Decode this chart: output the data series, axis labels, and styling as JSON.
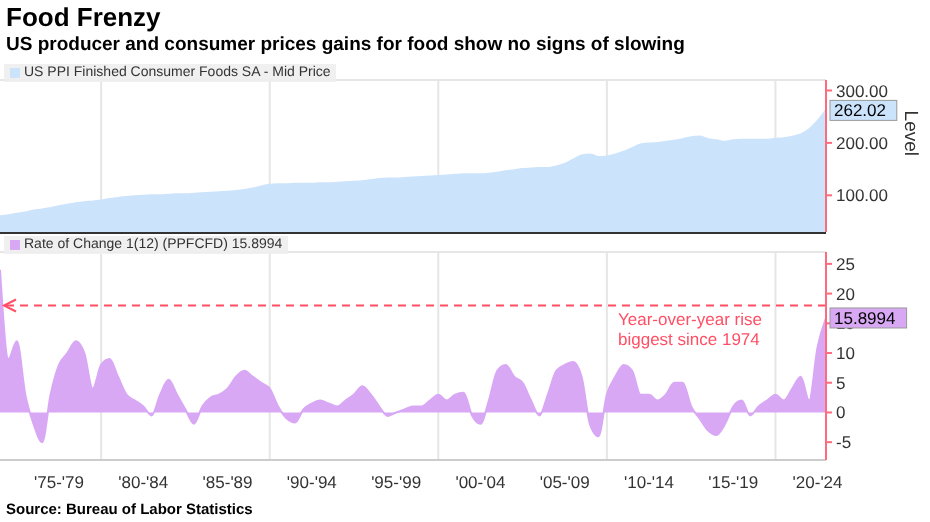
{
  "chart_data": [
    {
      "type": "area",
      "title": "Food Frenzy",
      "subtitle": "US producer and consumer prices gains for food show no signs of slowing",
      "ylabel": "Level",
      "ylim": [
        30,
        320
      ],
      "yticks": [
        {
          "value": 100,
          "label": "100.00"
        },
        {
          "value": 200,
          "label": "200.00"
        },
        {
          "value": 300,
          "label": "300.00"
        }
      ],
      "tick_labels": "y",
      "grid": true,
      "legend": "top left",
      "categories": [
        null,
        null,
        null,
        null,
        null,
        null,
        null,
        null,
        null,
        null,
        null,
        null,
        null,
        null,
        null,
        null,
        null,
        null,
        null,
        null,
        null,
        null,
        null,
        null,
        null,
        null,
        null,
        null,
        null,
        null,
        null,
        null,
        null,
        null,
        null,
        null,
        null,
        null,
        null,
        null,
        null,
        null,
        null,
        null,
        null,
        null,
        null,
        null,
        null,
        null,
        null,
        null,
        null,
        null,
        null,
        null,
        null,
        null,
        null,
        null,
        null,
        null,
        null,
        null,
        null,
        null,
        null,
        null,
        null,
        null,
        null,
        null,
        null,
        null,
        null,
        null,
        null,
        null,
        null,
        null,
        null,
        null,
        null,
        null,
        null,
        null,
        null,
        null,
        null,
        null,
        null,
        null,
        null,
        null,
        null,
        null,
        null,
        null,
        null
      ],
      "series": [
        {
          "name": "US PPI Finished Consumer Foods SA - Mid Price",
          "color": "#cce3fc",
          "values": [
            60,
            62,
            65,
            67,
            71,
            73,
            76,
            79,
            82,
            85,
            87,
            88,
            90,
            93,
            95,
            97,
            98,
            99,
            100,
            100,
            101,
            102,
            102,
            103,
            104,
            105,
            106,
            107,
            108,
            110,
            113,
            117,
            120,
            121,
            121,
            122,
            122,
            122,
            123,
            123,
            124,
            125,
            126,
            127,
            129,
            131,
            132,
            132,
            133,
            134,
            135,
            136,
            137,
            138,
            139,
            140,
            140,
            140,
            141,
            143,
            146,
            148,
            150,
            151,
            152,
            152,
            155,
            160,
            168,
            176,
            178,
            173,
            174,
            178,
            183,
            190,
            197,
            199,
            200,
            202,
            204,
            207,
            211,
            212,
            207,
            205,
            202,
            205,
            206,
            206,
            206,
            206,
            208,
            209,
            212,
            216,
            226,
            242,
            262.02
          ],
          "value_labels": [
            null,
            null,
            null,
            null,
            null,
            null,
            null,
            null,
            null,
            null,
            null,
            null,
            null,
            null,
            null,
            null,
            null,
            null,
            null,
            null,
            null,
            null,
            null,
            null,
            null,
            null,
            null,
            null,
            null,
            null,
            null,
            null,
            null,
            null,
            null,
            null,
            null,
            null,
            null,
            null,
            null,
            null,
            null,
            null,
            null,
            null,
            null,
            null,
            null,
            null,
            null,
            null,
            null,
            null,
            null,
            null,
            null,
            null,
            null,
            null,
            null,
            null,
            null,
            null,
            null,
            null,
            null,
            null,
            null,
            null,
            null,
            null,
            null,
            null,
            null,
            null,
            null,
            null,
            null,
            null,
            null,
            null,
            null,
            null,
            null,
            null,
            null,
            null,
            null,
            null,
            null,
            null,
            null,
            null,
            null,
            null,
            null,
            null,
            "262.02"
          ]
        }
      ]
    },
    {
      "type": "area",
      "ylim": [
        -8,
        27
      ],
      "yticks": [
        -5,
        0,
        5,
        10,
        15,
        20,
        25
      ],
      "grid": true,
      "legend": "top left",
      "categories": [
        null,
        null,
        null,
        null,
        null,
        null,
        null,
        "'75-'79",
        null,
        null,
        null,
        null,
        null,
        null,
        null,
        null,
        null,
        "'80-'84",
        null,
        null,
        null,
        null,
        null,
        null,
        null,
        null,
        null,
        "'85-'89",
        null,
        null,
        null,
        null,
        null,
        null,
        null,
        null,
        null,
        "'90-'94",
        null,
        null,
        null,
        null,
        null,
        null,
        null,
        null,
        null,
        "'95-'99",
        null,
        null,
        null,
        null,
        null,
        null,
        null,
        null,
        null,
        "'00-'04",
        null,
        null,
        null,
        null,
        null,
        null,
        null,
        null,
        null,
        "'05-'09",
        null,
        null,
        null,
        null,
        null,
        null,
        null,
        null,
        null,
        "'10-'14",
        null,
        null,
        null,
        null,
        null,
        null,
        null,
        null,
        null,
        "'15-'19",
        null,
        null,
        null,
        null,
        null,
        null,
        null,
        null,
        null,
        "'20-'24",
        null
      ],
      "annotations": [
        "Source: Bureau of Labor Statistics"
      ],
      "ref_lines": [
        {
          "axis": "y",
          "value": 18,
          "label": "Year-over-year rise biggest since 1974",
          "color": "#ff4f64",
          "line_style": "dashed"
        }
      ],
      "series": [
        {
          "name": "Rate of Change 1(12) (PPFCFD) 15.8994",
          "color": "#d9a8f5",
          "values": [
            24,
            9,
            12,
            3,
            -2,
            -5,
            3,
            8,
            10,
            12,
            10,
            4,
            8,
            9,
            6,
            3,
            2,
            1,
            -0.5,
            3,
            5.5,
            3,
            0.5,
            -1.9,
            1,
            2.5,
            3,
            4,
            6,
            7,
            6,
            5,
            4,
            1,
            -1,
            -1.7,
            0.5,
            1.5,
            2,
            1.5,
            1,
            2,
            3,
            4.4,
            3,
            1,
            -0.6,
            0,
            0.5,
            1,
            1,
            2,
            3,
            2,
            3,
            3.3,
            -0.5,
            -1.9,
            2,
            7,
            8,
            6,
            5,
            2,
            -0.5,
            3,
            7,
            8,
            8.5,
            6,
            -2,
            -4,
            3,
            6,
            8,
            7,
            3,
            3,
            2,
            3,
            5,
            5,
            1,
            -1,
            -3,
            -3.8,
            -2,
            1,
            2,
            -0.5,
            1,
            2,
            3,
            2,
            4,
            6,
            2,
            11,
            15.8994
          ],
          "value_labels": [
            null,
            null,
            null,
            null,
            null,
            null,
            null,
            null,
            null,
            null,
            null,
            null,
            null,
            null,
            null,
            null,
            null,
            null,
            null,
            null,
            null,
            null,
            null,
            null,
            null,
            null,
            null,
            null,
            null,
            null,
            null,
            null,
            null,
            null,
            null,
            null,
            null,
            null,
            null,
            null,
            null,
            null,
            null,
            null,
            null,
            null,
            null,
            null,
            null,
            null,
            null,
            null,
            null,
            null,
            null,
            null,
            null,
            null,
            null,
            null,
            null,
            null,
            null,
            null,
            null,
            null,
            null,
            null,
            null,
            null,
            null,
            null,
            null,
            null,
            null,
            null,
            null,
            null,
            null,
            null,
            null,
            null,
            null,
            null,
            null,
            null,
            null,
            null,
            null,
            null,
            null,
            null,
            null,
            null,
            null,
            null,
            null,
            null,
            "15.8994"
          ]
        }
      ]
    }
  ]
}
